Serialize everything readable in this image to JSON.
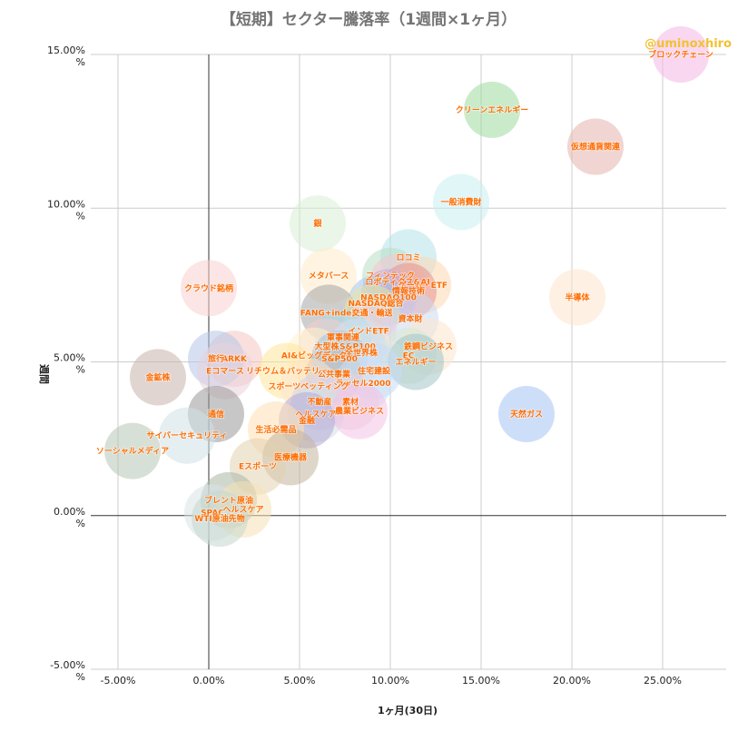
{
  "chart_data": {
    "type": "scatter",
    "title": "【短期】セクター騰落率（1週間×1ヶ月）",
    "handle": "@uminoxhiro",
    "xlabel": "1ヶ月(30日)",
    "ylabel": "週間",
    "xlim": [
      -6.5,
      28.5
    ],
    "ylim": [
      -5,
      15
    ],
    "x_ticks": [
      -5,
      0,
      5,
      10,
      15,
      20,
      25
    ],
    "x_tick_labels": [
      "-5.00%",
      "0.00%",
      "5.00%",
      "10.00%",
      "15.00%",
      "20.00%",
      "25.00%"
    ],
    "y_ticks": [
      -5,
      0,
      5,
      10,
      15
    ],
    "y_tick_labels": [
      "-5.00%",
      "0.00%",
      "5.00%",
      "10.00%",
      "15.00%"
    ],
    "y_unit": "%",
    "grid": true,
    "points": [
      {
        "label": "ブロックチェーン",
        "x": 26.0,
        "y": 15.0,
        "color": "#f4b6e6"
      },
      {
        "label": "クリーンエネルギー",
        "x": 15.6,
        "y": 13.2,
        "color": "#9fdb9f"
      },
      {
        "label": "仮想通貨関連",
        "x": 21.3,
        "y": 12.0,
        "color": "#e6b3ad"
      },
      {
        "label": "一般消費財",
        "x": 13.9,
        "y": 10.2,
        "color": "#c8eef0"
      },
      {
        "label": "銀",
        "x": 6.0,
        "y": 9.5,
        "color": "#d8efd6"
      },
      {
        "label": "半導体",
        "x": 20.3,
        "y": 7.1,
        "color": "#fde3cc"
      },
      {
        "label": "ロコミ",
        "x": 11.0,
        "y": 8.4,
        "color": "#b4e2e9"
      },
      {
        "label": "メタバース",
        "x": 6.6,
        "y": 7.8,
        "color": "#fdebc8"
      },
      {
        "label": "フィンテック",
        "x": 10.0,
        "y": 7.8,
        "color": "#b9dfc4"
      },
      {
        "label": "ロボティクス&AI",
        "x": 10.4,
        "y": 7.6,
        "color": "#f6c4cf"
      },
      {
        "label": "ゲーム・ETF",
        "x": 11.8,
        "y": 7.5,
        "color": "#fdd7b0"
      },
      {
        "label": "情報技術",
        "x": 11.0,
        "y": 7.3,
        "color": "#e39393"
      },
      {
        "label": "NASDAQ100",
        "x": 9.9,
        "y": 7.1,
        "color": "#c9a6d8"
      },
      {
        "label": "クラウド銘柄",
        "x": 0.0,
        "y": 7.4,
        "color": "#f9d0d0"
      },
      {
        "label": "NASDAQ総合",
        "x": 9.2,
        "y": 6.9,
        "color": "#a5c2e8"
      },
      {
        "label": "FANG+index",
        "x": 6.6,
        "y": 6.6,
        "color": "#a6a6a6"
      },
      {
        "label": "交通・輸送",
        "x": 9.0,
        "y": 6.6,
        "color": "#e9e6a0"
      },
      {
        "label": "資本財",
        "x": 11.1,
        "y": 6.4,
        "color": "#ccd9f2"
      },
      {
        "label": "インドETF",
        "x": 8.8,
        "y": 6.0,
        "color": "#e8d0ea"
      },
      {
        "label": "軍事関連",
        "x": 7.4,
        "y": 5.8,
        "color": "#a2d8e3"
      },
      {
        "label": "大型株",
        "x": 6.5,
        "y": 5.5,
        "color": "#f4cccc"
      },
      {
        "label": "S&P100",
        "x": 8.2,
        "y": 5.5,
        "color": "#cfe2f3"
      },
      {
        "label": "鉄鋼ビジネス",
        "x": 12.1,
        "y": 5.5,
        "color": "#fce5cd"
      },
      {
        "label": "全世界株",
        "x": 8.4,
        "y": 5.3,
        "color": "#d0e0e3"
      },
      {
        "label": "EC",
        "x": 11.0,
        "y": 5.2,
        "color": "#d9ead3"
      },
      {
        "label": "AI&ビッグデータ",
        "x": 5.8,
        "y": 5.2,
        "color": "#fff2cc"
      },
      {
        "label": "S&P500",
        "x": 7.2,
        "y": 5.1,
        "color": "#9fc5e8"
      },
      {
        "label": "エネルギー",
        "x": 11.4,
        "y": 5.0,
        "color": "#a2c4c9"
      },
      {
        "label": "ARKK",
        "x": 1.4,
        "y": 5.1,
        "color": "#f4c7c3"
      },
      {
        "label": "旅行",
        "x": 0.4,
        "y": 5.1,
        "color": "#b4c7e7"
      },
      {
        "label": "Eコマース",
        "x": 0.9,
        "y": 4.7,
        "color": "#ead1dc"
      },
      {
        "label": "リチウム＆バッテリー",
        "x": 4.3,
        "y": 4.7,
        "color": "#ffe599"
      },
      {
        "label": "住宅建設",
        "x": 9.1,
        "y": 4.7,
        "color": "#c9daf8"
      },
      {
        "label": "公共事業",
        "x": 6.9,
        "y": 4.6,
        "color": "#b7b7b7"
      },
      {
        "label": "金鉱株",
        "x": -2.8,
        "y": 4.5,
        "color": "#c9b2ac"
      },
      {
        "label": "ラッセル2000",
        "x": 8.5,
        "y": 4.3,
        "color": "#cfe2f3"
      },
      {
        "label": "スポーツベッティング",
        "x": 5.5,
        "y": 4.2,
        "color": "#fce5cd"
      },
      {
        "label": "不動産",
        "x": 6.1,
        "y": 3.7,
        "color": "#d9d2e9"
      },
      {
        "label": "素材",
        "x": 7.8,
        "y": 3.7,
        "color": "#ead1dc"
      },
      {
        "label": "ヘルスケア",
        "x": 5.9,
        "y": 3.3,
        "color": "#d0e0e3"
      },
      {
        "label": "農業ビジネス",
        "x": 8.3,
        "y": 3.4,
        "color": "#f4c2e8"
      },
      {
        "label": "金融",
        "x": 5.4,
        "y": 3.1,
        "color": "#b4a7d6"
      },
      {
        "label": "天然ガス",
        "x": 17.5,
        "y": 3.3,
        "color": "#a4c2f4"
      },
      {
        "label": "通信",
        "x": 0.4,
        "y": 3.3,
        "color": "#999999"
      },
      {
        "label": "生活必需品",
        "x": 3.7,
        "y": 2.8,
        "color": "#ffe0b2"
      },
      {
        "label": "サイバーセキュリティ",
        "x": -1.2,
        "y": 2.6,
        "color": "#d0e0e3"
      },
      {
        "label": "ソーシャルメディア",
        "x": -4.2,
        "y": 2.1,
        "color": "#b6c7b4"
      },
      {
        "label": "医療機器",
        "x": 4.5,
        "y": 1.9,
        "color": "#c2b59b"
      },
      {
        "label": "Eスポーツ",
        "x": 2.7,
        "y": 1.6,
        "color": "#e2d2b0"
      },
      {
        "label": "ブレント原油",
        "x": 1.1,
        "y": 0.5,
        "color": "#a9b8a5"
      },
      {
        "label": "SPAC",
        "x": 0.2,
        "y": 0.1,
        "color": "#d8e4e7"
      },
      {
        "label": "ヘルスケア",
        "x": 1.9,
        "y": 0.2,
        "color": "#f6e1b5"
      },
      {
        "label": "WTI原油先物",
        "x": 0.6,
        "y": -0.1,
        "color": "#c4d7ce"
      }
    ]
  }
}
